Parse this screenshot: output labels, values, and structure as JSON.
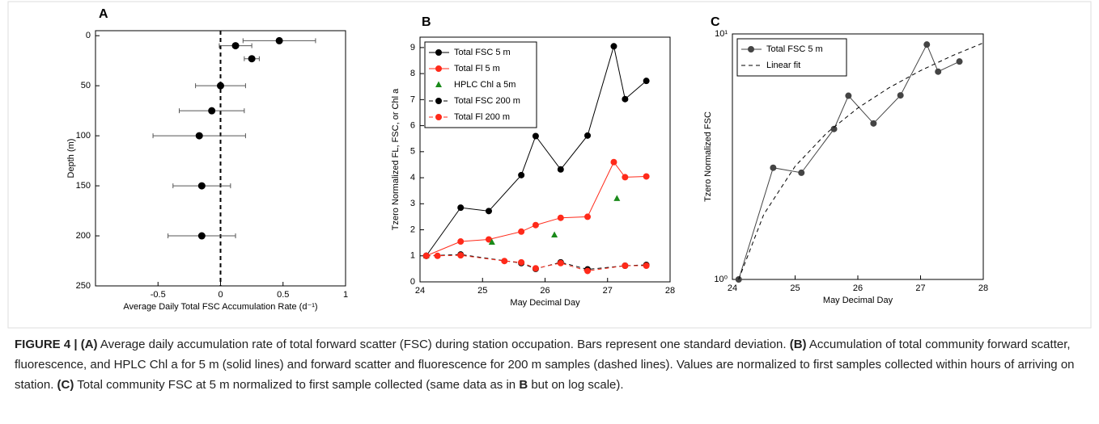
{
  "chart_data": [
    {
      "type": "errorbar",
      "panel": "A",
      "xlabel": "Average Daily Total FSC Accumulation Rate (d⁻¹)",
      "ylabel": "Depth (m)",
      "y": [
        5,
        10,
        23,
        50,
        75,
        100,
        150,
        200
      ],
      "values": [
        0.47,
        0.12,
        0.25,
        0,
        -0.07,
        -0.17,
        -0.15,
        -0.15
      ],
      "errors": [
        0.29,
        0.13,
        0.06,
        0.2,
        0.26,
        0.37,
        0.23,
        0.27
      ],
      "color": "#000000",
      "vline": 0,
      "xlim": [
        -1,
        1
      ],
      "xticks": [
        -0.5,
        0,
        0.5,
        1
      ],
      "ylim": [
        250,
        -5
      ],
      "yticks": [
        0,
        50,
        100,
        150,
        200,
        250
      ]
    },
    {
      "type": "line",
      "panel": "B",
      "xlabel": "May Decimal Day",
      "ylabel": "Tzero Normalized FL, FSC, or Chl a",
      "legend": "upper-left",
      "xlim": [
        24,
        28
      ],
      "xticks": [
        24,
        25,
        26,
        27,
        28
      ],
      "ylim": [
        0,
        9.4
      ],
      "yticks": [
        0,
        1,
        2,
        3,
        4,
        5,
        6,
        7,
        8,
        9
      ],
      "series": [
        {
          "name": "Total FSC 5 m",
          "color": "#000000",
          "linestyle": "solid",
          "marker": "o",
          "x": [
            24.1,
            24.65,
            25.1,
            25.62,
            25.85,
            26.25,
            26.68,
            27.1,
            27.28,
            27.62
          ],
          "values": [
            1,
            2.85,
            2.72,
            4.1,
            5.6,
            4.32,
            5.62,
            9.05,
            7.02,
            7.72
          ]
        },
        {
          "name": "Total Fl 5 m",
          "color": "#ff2a1a",
          "linestyle": "solid",
          "marker": "o",
          "x": [
            24.1,
            24.65,
            25.1,
            25.62,
            25.85,
            26.25,
            26.68,
            27.1,
            27.28,
            27.62
          ],
          "values": [
            1,
            1.55,
            1.63,
            1.93,
            2.18,
            2.46,
            2.5,
            4.6,
            4.02,
            4.05
          ]
        },
        {
          "name": "HPLC Chl a 5m",
          "color": "#1a8a1a",
          "linestyle": "none",
          "marker": "^",
          "x": [
            24.1,
            25.15,
            26.15,
            27.15
          ],
          "values": [
            1,
            1.52,
            1.8,
            3.2
          ]
        },
        {
          "name": "Total FSC 200 m",
          "color": "#000000",
          "linestyle": "dashed",
          "marker": "o",
          "x": [
            24.1,
            24.65,
            25.62,
            25.85,
            26.25,
            26.68,
            27.28,
            27.62
          ],
          "values": [
            1,
            1.05,
            0.72,
            0.5,
            0.75,
            0.48,
            0.62,
            0.65
          ]
        },
        {
          "name": "Total Fl 200 m",
          "color": "#ff2a1a",
          "linestyle": "dashed",
          "marker": "o",
          "x": [
            24.1,
            24.28,
            24.65,
            25.35,
            25.62,
            25.85,
            26.25,
            26.68,
            27.28,
            27.62
          ],
          "values": [
            1,
            1,
            1.02,
            0.8,
            0.75,
            0.52,
            0.72,
            0.42,
            0.62,
            0.62
          ]
        }
      ]
    },
    {
      "type": "line",
      "panel": "C",
      "ylog": true,
      "xlabel": "May Decimal Day",
      "ylabel": "Tzero Normalized FSC",
      "legend": "upper-left",
      "xlim": [
        24,
        28
      ],
      "xticks": [
        24,
        25,
        26,
        27,
        28
      ],
      "ylim": [
        1,
        10
      ],
      "yticks": [
        {
          "value": 1,
          "label": "10⁰"
        },
        {
          "value": 10,
          "label": "10¹"
        }
      ],
      "series": [
        {
          "name": "Total FSC 5 m",
          "color": "#444444",
          "linestyle": "solid",
          "marker": "o",
          "x": [
            24.1,
            24.65,
            25.1,
            25.62,
            25.85,
            26.25,
            26.68,
            27.1,
            27.28,
            27.62
          ],
          "values": [
            1,
            2.85,
            2.72,
            4.1,
            5.6,
            4.32,
            5.62,
            9.05,
            7.02,
            7.72
          ]
        },
        {
          "name": "Linear fit",
          "color": "#000000",
          "linestyle": "dashed",
          "marker": "none",
          "x": [
            24.1,
            24.5,
            25,
            25.5,
            26,
            26.5,
            27,
            27.5,
            28
          ],
          "values": [
            1,
            1.84,
            2.89,
            3.94,
            4.99,
            6.04,
            7.09,
            8.14,
            9.19
          ]
        }
      ]
    }
  ],
  "caption": {
    "parts": [
      {
        "text": "FIGURE 4 | (A)",
        "bold": true
      },
      {
        "text": " Average daily accumulation rate of total forward scatter (FSC) during station occupation. Bars represent one standard deviation. ",
        "bold": false
      },
      {
        "text": "(B)",
        "bold": true
      },
      {
        "text": " Accumulation of total community forward scatter, fluorescence, and HPLC Chl a for 5 m (solid lines) and forward scatter and fluorescence for 200 m samples (dashed lines). Values are normalized to first samples collected within hours of arriving on station. ",
        "bold": false
      },
      {
        "text": "(C)",
        "bold": true
      },
      {
        "text": " Total community FSC at 5 m normalized to first sample collected (same data as in ",
        "bold": false
      },
      {
        "text": "B",
        "bold": true
      },
      {
        "text": " but on log scale).",
        "bold": false
      }
    ]
  }
}
